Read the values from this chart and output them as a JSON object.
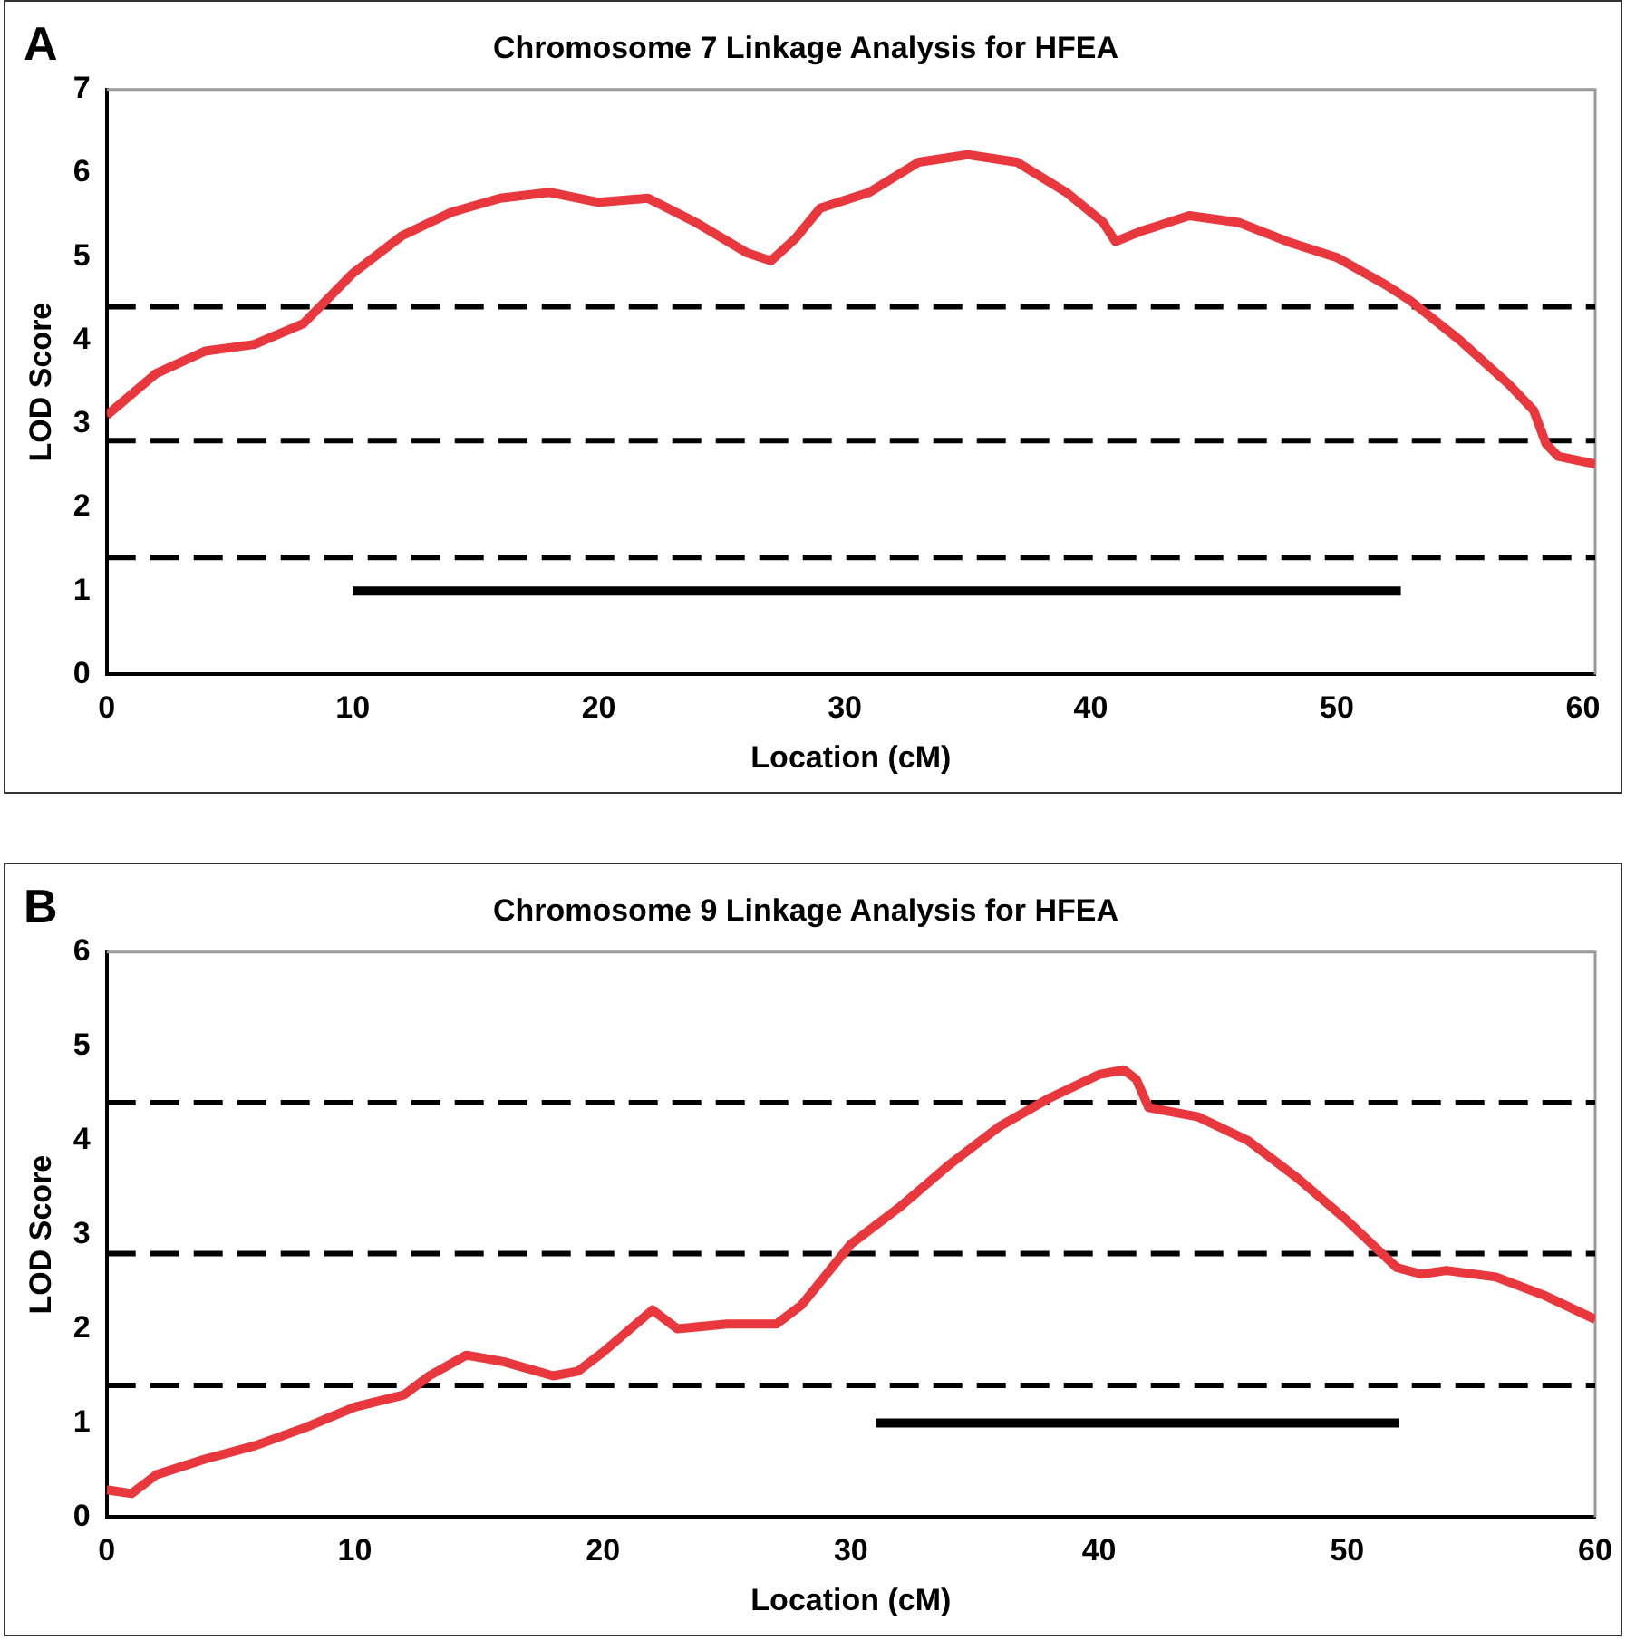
{
  "chart_data": [
    {
      "type": "line",
      "title": "Chromosome 7 Linkage Analysis for HFEA",
      "xlabel": "Location (cM)",
      "ylabel": "LOD Score",
      "annotations": [
        "A"
      ],
      "xlim": [
        0,
        60.5
      ],
      "xticks": [
        0,
        10,
        20,
        30,
        40,
        50,
        60
      ],
      "ylim": [
        0,
        7
      ],
      "yticks": [
        0,
        1,
        2,
        3,
        4,
        5,
        6,
        7
      ],
      "grid": false,
      "legend": false,
      "marker": "none",
      "line_style": "solid",
      "series": [
        {
          "color": "#e8383d",
          "x": [
            0,
            2,
            4,
            6,
            8,
            10,
            12,
            14,
            16,
            18,
            20,
            22,
            24,
            26,
            27,
            28,
            29,
            31,
            33,
            35,
            37,
            39,
            40.5,
            41,
            42,
            44,
            46,
            48,
            50,
            52,
            53,
            55,
            57,
            58,
            58.5,
            59,
            60.5
          ],
          "values": [
            3.1,
            3.6,
            3.87,
            3.95,
            4.2,
            4.8,
            5.25,
            5.53,
            5.7,
            5.77,
            5.65,
            5.7,
            5.4,
            5.05,
            4.95,
            5.22,
            5.58,
            5.77,
            6.13,
            6.22,
            6.13,
            5.77,
            5.41,
            5.18,
            5.3,
            5.49,
            5.41,
            5.18,
            4.99,
            4.66,
            4.47,
            4.0,
            3.47,
            3.16,
            2.76,
            2.61,
            2.52
          ]
        },
        {
          "color": "#000000",
          "x": [
            10,
            52.6
          ],
          "values": [
            1,
            1
          ]
        }
      ],
      "ref_lines": [
        {
          "axis": "y",
          "value": 4.4,
          "color": "#000000",
          "line_style": "dashed"
        },
        {
          "axis": "y",
          "value": 2.8,
          "color": "#000000",
          "line_style": "dashed"
        },
        {
          "axis": "y",
          "value": 1.4,
          "color": "#000000",
          "line_style": "dashed"
        }
      ]
    },
    {
      "type": "line",
      "title": "Chromosome 9 Linkage Analysis for HFEA",
      "xlabel": "Location (cM)",
      "ylabel": "LOD Score",
      "annotations": [
        "B"
      ],
      "xlim": [
        0,
        60
      ],
      "xticks": [
        0,
        10,
        20,
        30,
        40,
        50,
        60
      ],
      "ylim": [
        0,
        6
      ],
      "yticks": [
        0,
        1,
        2,
        3,
        4,
        5,
        6
      ],
      "grid": false,
      "legend": false,
      "marker": "none",
      "line_style": "solid",
      "series": [
        {
          "color": "#e8383d",
          "x": [
            0,
            1,
            2,
            4,
            6,
            8,
            10,
            12,
            13,
            14.5,
            16,
            18,
            19,
            20,
            22,
            23,
            25,
            27,
            28,
            30,
            32,
            34,
            36,
            38,
            40,
            41,
            41.5,
            42,
            44,
            46,
            48,
            50,
            52,
            53,
            54,
            56,
            58,
            60
          ],
          "values": [
            0.29,
            0.25,
            0.45,
            0.62,
            0.76,
            0.95,
            1.17,
            1.3,
            1.5,
            1.72,
            1.65,
            1.5,
            1.55,
            1.75,
            2.2,
            2.0,
            2.05,
            2.05,
            2.25,
            2.9,
            3.3,
            3.75,
            4.15,
            4.45,
            4.7,
            4.75,
            4.65,
            4.35,
            4.25,
            4.0,
            3.6,
            3.15,
            2.65,
            2.58,
            2.62,
            2.55,
            2.35,
            2.1
          ]
        },
        {
          "color": "#000000",
          "x": [
            31,
            52.1
          ],
          "values": [
            1,
            1
          ]
        }
      ],
      "ref_lines": [
        {
          "axis": "y",
          "value": 4.4,
          "color": "#000000",
          "line_style": "dashed"
        },
        {
          "axis": "y",
          "value": 2.8,
          "color": "#000000",
          "line_style": "dashed"
        },
        {
          "axis": "y",
          "value": 1.4,
          "color": "#000000",
          "line_style": "dashed"
        }
      ]
    }
  ]
}
